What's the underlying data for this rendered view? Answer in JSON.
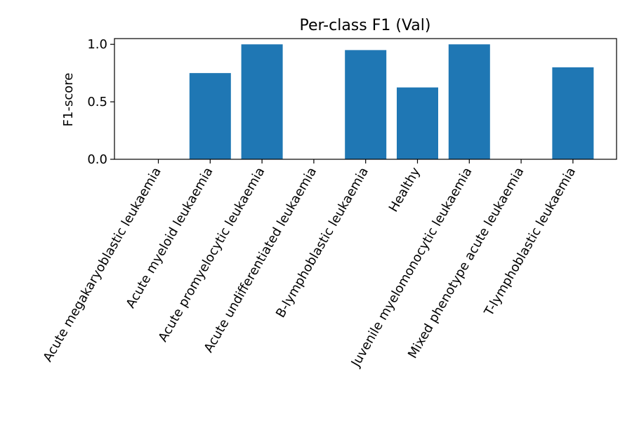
{
  "chart_data": {
    "type": "bar",
    "title": "Per-class F1 (Val)",
    "xlabel": "",
    "ylabel": "F1-score",
    "ylim": [
      0,
      1.05
    ],
    "yticks": [
      0.0,
      0.5,
      1.0
    ],
    "ytick_labels": [
      "0.0",
      "0.5",
      "1.0"
    ],
    "grid": false,
    "legend": "none",
    "bar_color": "#1f77b4",
    "categories": [
      "Acute megakaryoblastic leukaemia",
      "Acute myeloid leukaemia",
      "Acute promyelocytic leukaemia",
      "Acute undifferentiated leukaemia",
      "B-lymphoblastic leukaemia",
      "Healthy",
      "Juvenile myelomonocytic leukaemia",
      "Mixed phenotype acute leukaemia",
      "T-lymphoblastic leukaemia"
    ],
    "values": [
      0.0,
      0.75,
      1.0,
      0.0,
      0.95,
      0.625,
      1.0,
      0.0,
      0.8
    ]
  }
}
